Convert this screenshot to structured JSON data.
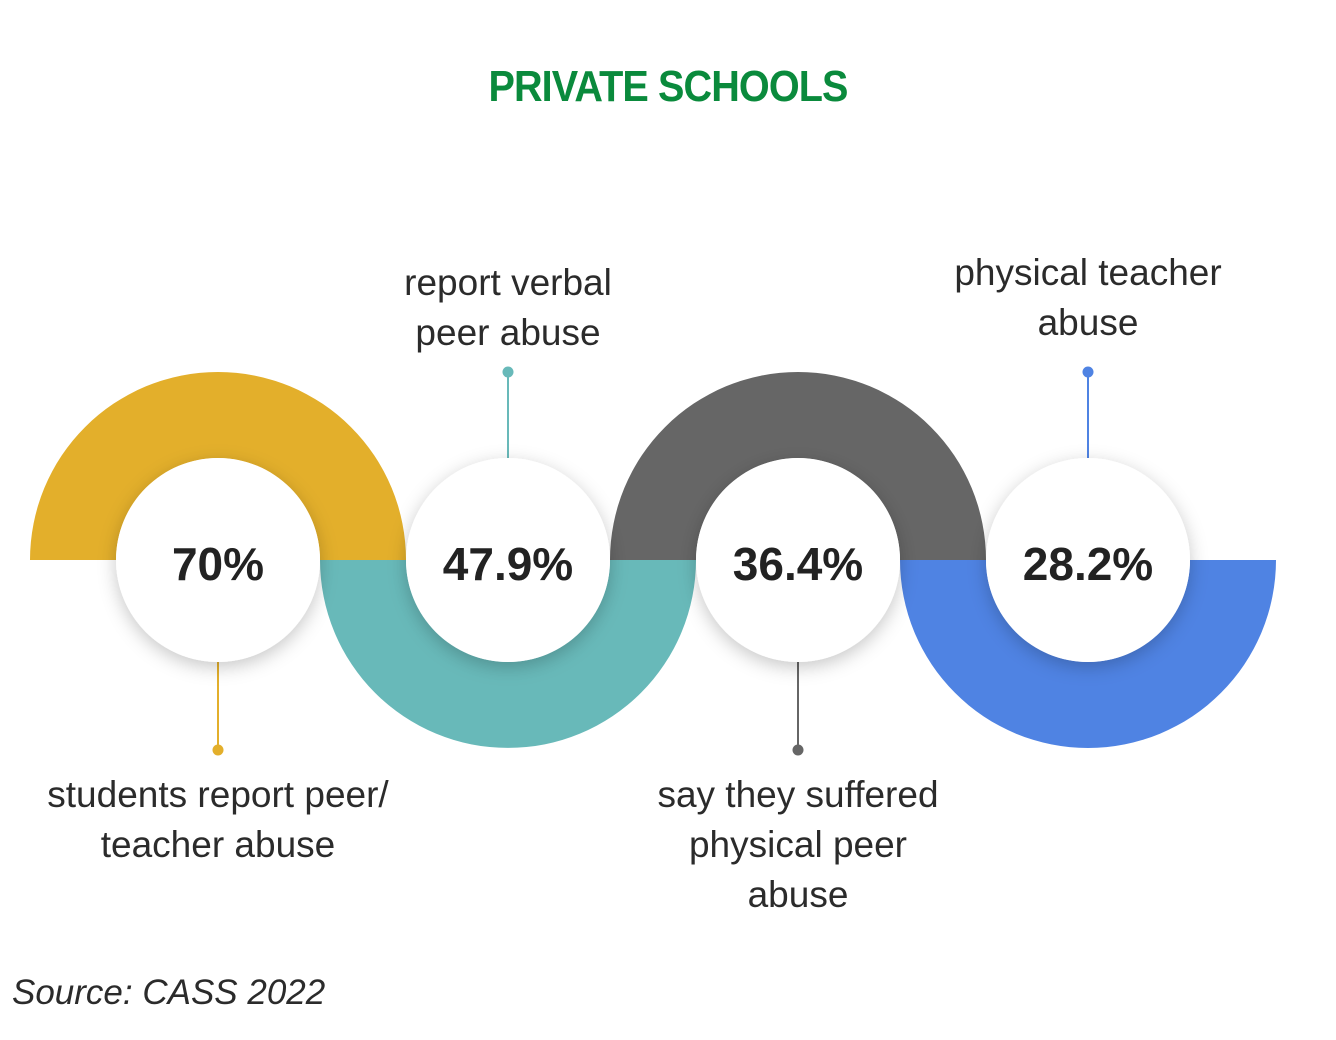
{
  "title": "PRIVATE SCHOOLS",
  "title_color": "#0a8a3c",
  "source": "Source: CASS 2022",
  "chart_data": {
    "type": "donut",
    "unit": "%",
    "items": [
      {
        "value": 70,
        "label": "70%",
        "caption": "students report peer/\nteacher abuse",
        "color": "#e3af2b",
        "arc": "top",
        "caption_side": "below"
      },
      {
        "value": 47.9,
        "label": "47.9%",
        "caption": "report verbal\npeer abuse",
        "color": "#68b9b9",
        "arc": "bottom",
        "caption_side": "above"
      },
      {
        "value": 36.4,
        "label": "36.4%",
        "caption": "say they suffered\nphysical peer\nabuse",
        "color": "#666666",
        "arc": "top",
        "caption_side": "below"
      },
      {
        "value": 28.2,
        "label": "28.2%",
        "caption": "physical teacher\nabuse",
        "color": "#4f83e3",
        "arc": "bottom",
        "caption_side": "above"
      }
    ]
  }
}
